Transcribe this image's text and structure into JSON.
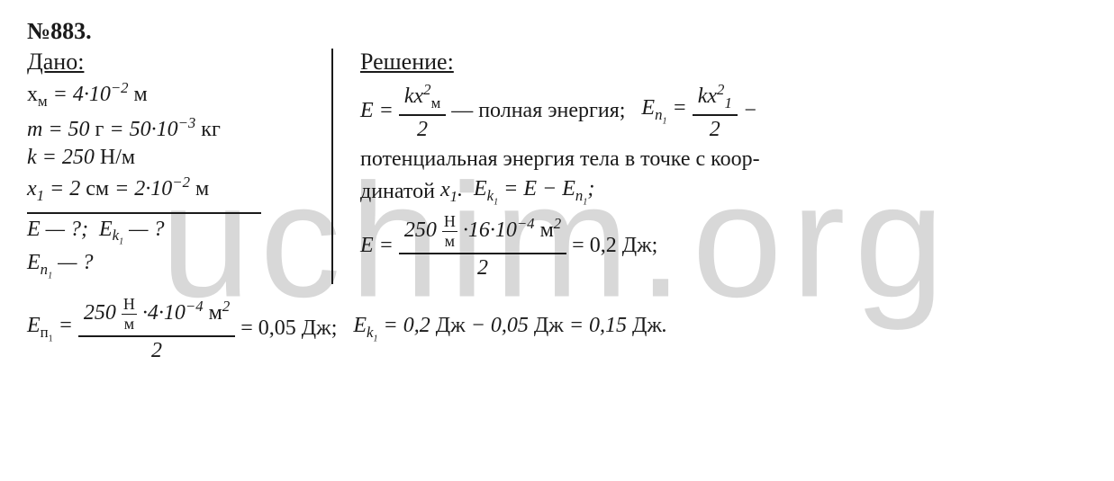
{
  "watermark": "uchim.org",
  "problem_number": "№883.",
  "given": {
    "heading": "Дано:",
    "lines": [
      "x_м = 4·10⁻² м",
      "m = 50 г = 50·10⁻³ кг",
      "k = 250 Н/м",
      "x₁ = 2 см = 2·10⁻² м"
    ],
    "query1": "E — ?;  E_k₁ — ?",
    "query2": "E_n₁ — ?"
  },
  "solution": {
    "heading": "Решение:",
    "total_energy": {
      "lhs": "E",
      "frac_num": "kx²_м",
      "frac_den": "2",
      "desc": "— полная энергия;"
    },
    "potential": {
      "lhs": "E_n₁",
      "frac_num": "kx²₁",
      "frac_den": "2",
      "suffix": "—"
    },
    "line2": "потенциальная энергия тела в точке с коор-",
    "line3a": "динатой x₁.",
    "kinetic_rel": "E_k₁ = E − E_n₁;",
    "E_numeric": {
      "lhs": "E",
      "num_a": "250",
      "unit_num": "Н",
      "unit_den": "м",
      "num_b": "·16·10⁻⁴ м²",
      "den": "2",
      "result": "= 0,2 Дж;"
    },
    "Ep_numeric": {
      "lhs": "E_п₁",
      "num_a": "250",
      "unit_num": "Н",
      "unit_den": "м",
      "num_b": "·4·10⁻⁴ м²",
      "den": "2",
      "result": "= 0,05 Дж;"
    },
    "Ek_result": "E_k₁ = 0,2 Дж − 0,05 Дж = 0,15 Дж."
  },
  "colors": {
    "text": "#1a1a1a",
    "background": "#ffffff",
    "watermark": "#d8d8d8"
  },
  "fonts": {
    "body_family": "Times New Roman",
    "body_size_pt": 18,
    "watermark_size_pt": 135
  }
}
